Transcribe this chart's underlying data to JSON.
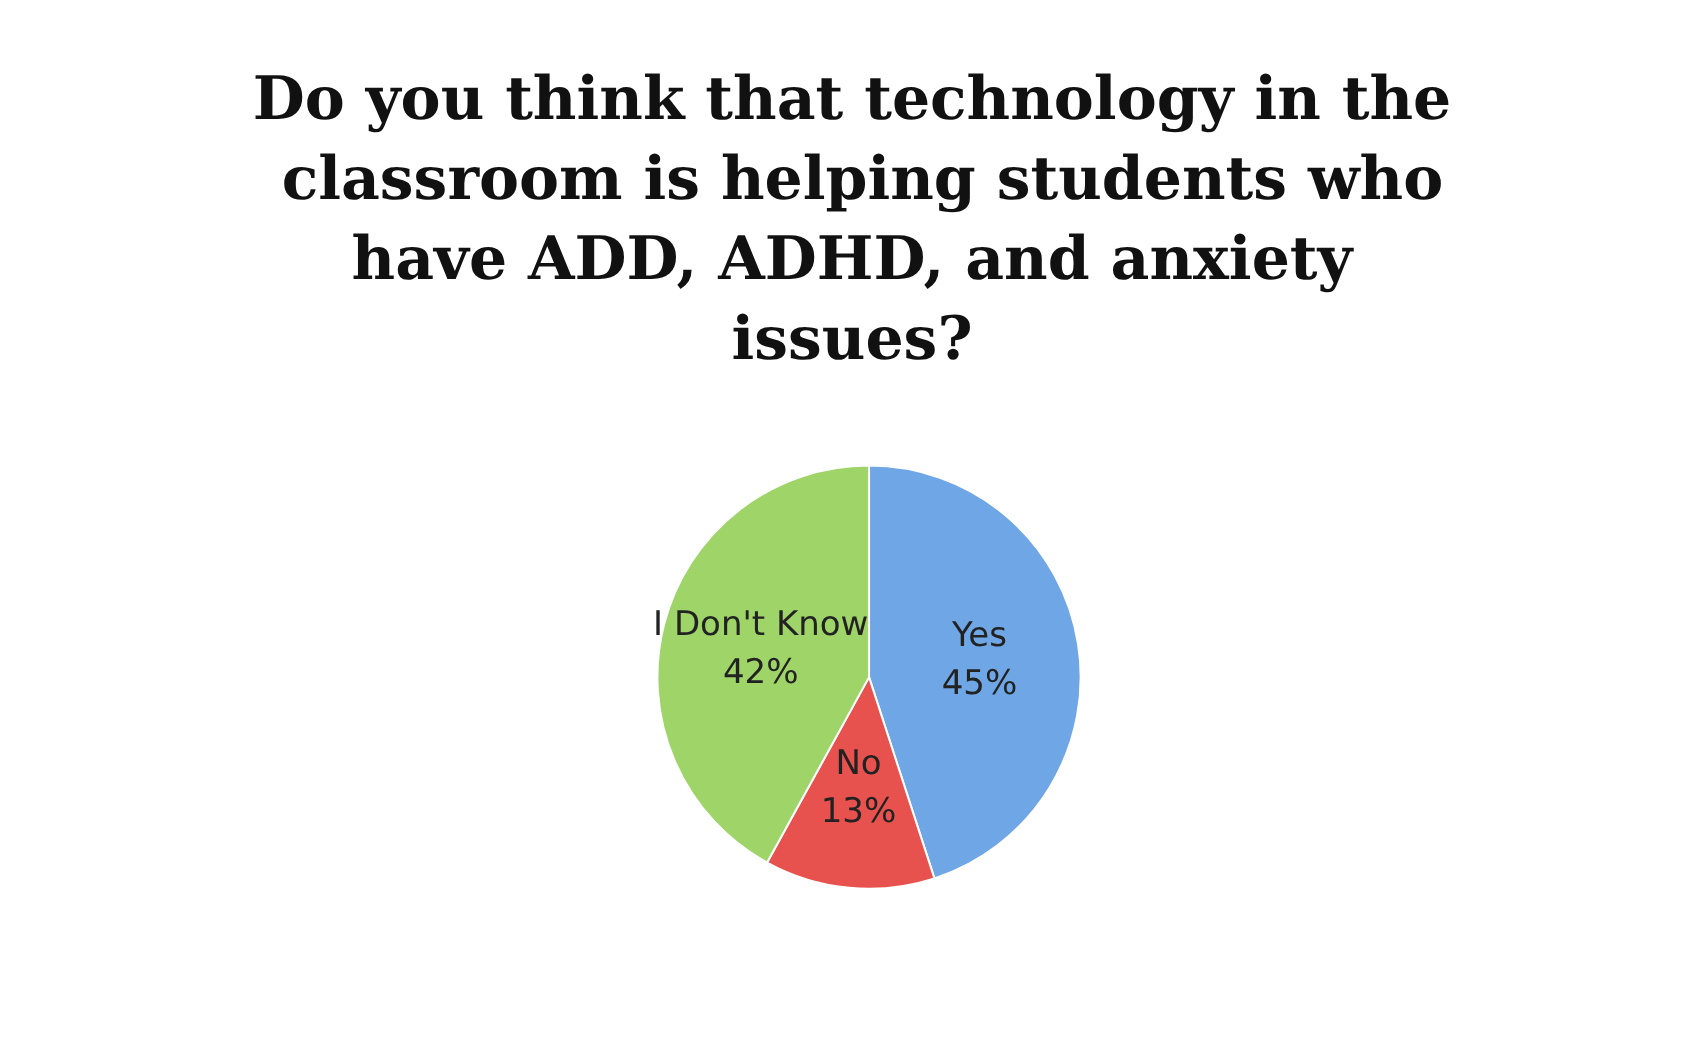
{
  "chart_data": {
    "type": "pie",
    "title": "Do you think that technology in the classroom is helping students who have ADD, ADHD, and anxiety issues?",
    "categories": [
      "Yes",
      "No",
      "I Don't Know"
    ],
    "values": [
      45,
      13,
      42
    ],
    "colors": [
      "#6fa6e6",
      "#e8524e",
      "#9ed468"
    ],
    "value_labels": [
      "45%",
      "13%",
      "42%"
    ],
    "legend": false
  }
}
